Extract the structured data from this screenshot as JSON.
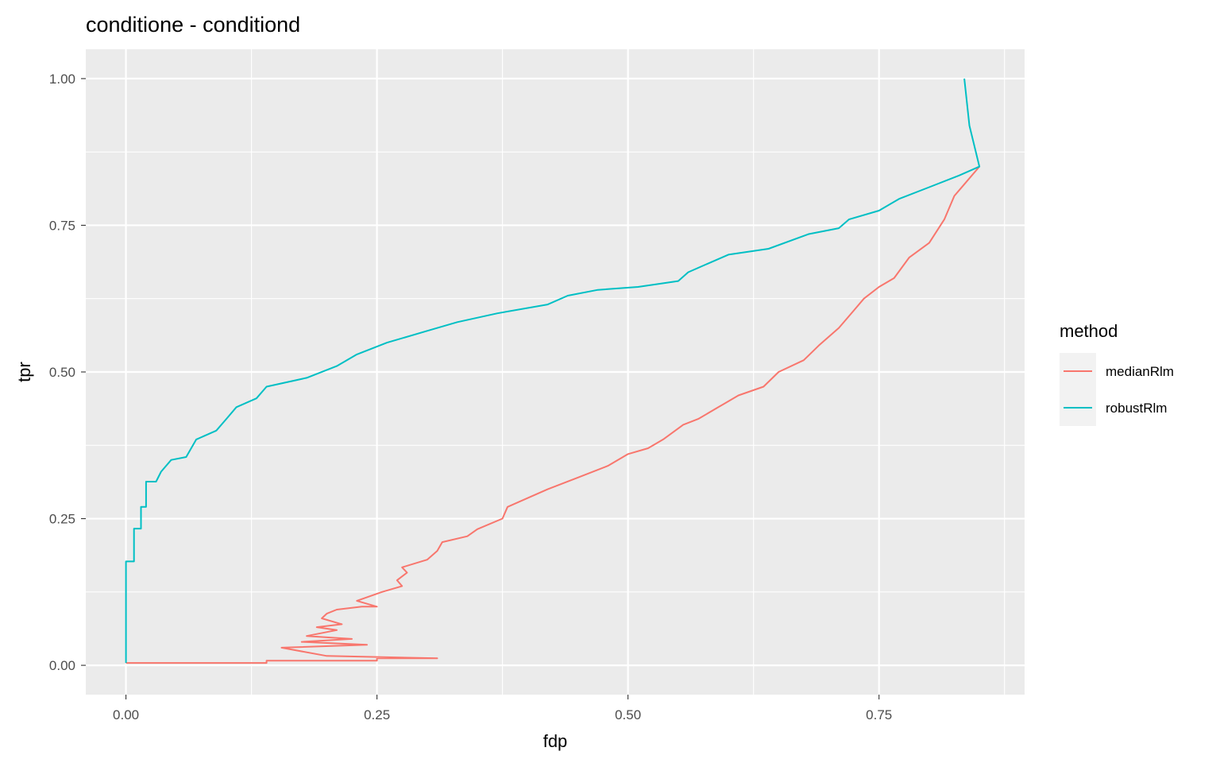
{
  "chart_data": {
    "type": "line",
    "title": "conditione - conditiond",
    "xlabel": "fdp",
    "ylabel": "tpr",
    "xlim": [
      -0.04,
      0.895
    ],
    "ylim": [
      -0.05,
      1.05
    ],
    "x_ticks": [
      0.0,
      0.25,
      0.5,
      0.75
    ],
    "x_tick_labels": [
      "0.00",
      "0.25",
      "0.50",
      "0.75"
    ],
    "y_ticks": [
      0.0,
      0.25,
      0.5,
      0.75,
      1.0
    ],
    "y_tick_labels": [
      "0.00",
      "0.25",
      "0.50",
      "0.75",
      "1.00"
    ],
    "grid": true,
    "legend": {
      "title": "method",
      "position": "right"
    },
    "series": [
      {
        "name": "medianRlm",
        "color": "#F8766D",
        "points": [
          [
            0.0,
            0.004
          ],
          [
            0.14,
            0.004
          ],
          [
            0.14,
            0.008
          ],
          [
            0.25,
            0.008
          ],
          [
            0.25,
            0.012
          ],
          [
            0.31,
            0.012
          ],
          [
            0.2,
            0.016
          ],
          [
            0.155,
            0.03
          ],
          [
            0.24,
            0.035
          ],
          [
            0.175,
            0.04
          ],
          [
            0.225,
            0.045
          ],
          [
            0.18,
            0.05
          ],
          [
            0.21,
            0.06
          ],
          [
            0.19,
            0.065
          ],
          [
            0.215,
            0.07
          ],
          [
            0.195,
            0.08
          ],
          [
            0.2,
            0.088
          ],
          [
            0.21,
            0.095
          ],
          [
            0.235,
            0.1
          ],
          [
            0.25,
            0.1
          ],
          [
            0.23,
            0.11
          ],
          [
            0.255,
            0.125
          ],
          [
            0.275,
            0.135
          ],
          [
            0.27,
            0.145
          ],
          [
            0.28,
            0.158
          ],
          [
            0.275,
            0.167
          ],
          [
            0.3,
            0.18
          ],
          [
            0.31,
            0.195
          ],
          [
            0.315,
            0.21
          ],
          [
            0.34,
            0.22
          ],
          [
            0.35,
            0.232
          ],
          [
            0.375,
            0.25
          ],
          [
            0.38,
            0.27
          ],
          [
            0.4,
            0.285
          ],
          [
            0.42,
            0.3
          ],
          [
            0.45,
            0.32
          ],
          [
            0.48,
            0.34
          ],
          [
            0.5,
            0.36
          ],
          [
            0.52,
            0.37
          ],
          [
            0.535,
            0.385
          ],
          [
            0.555,
            0.41
          ],
          [
            0.57,
            0.42
          ],
          [
            0.59,
            0.44
          ],
          [
            0.61,
            0.46
          ],
          [
            0.635,
            0.475
          ],
          [
            0.65,
            0.5
          ],
          [
            0.675,
            0.52
          ],
          [
            0.69,
            0.545
          ],
          [
            0.71,
            0.575
          ],
          [
            0.725,
            0.605
          ],
          [
            0.735,
            0.625
          ],
          [
            0.75,
            0.645
          ],
          [
            0.765,
            0.66
          ],
          [
            0.78,
            0.695
          ],
          [
            0.8,
            0.72
          ],
          [
            0.815,
            0.76
          ],
          [
            0.825,
            0.8
          ],
          [
            0.835,
            0.82
          ],
          [
            0.85,
            0.85
          ]
        ]
      },
      {
        "name": "robustRlm",
        "color": "#00BFC4",
        "points": [
          [
            0.0,
            0.004
          ],
          [
            0.0,
            0.177
          ],
          [
            0.008,
            0.177
          ],
          [
            0.008,
            0.233
          ],
          [
            0.015,
            0.233
          ],
          [
            0.015,
            0.27
          ],
          [
            0.02,
            0.27
          ],
          [
            0.02,
            0.313
          ],
          [
            0.03,
            0.313
          ],
          [
            0.035,
            0.33
          ],
          [
            0.045,
            0.35
          ],
          [
            0.06,
            0.355
          ],
          [
            0.07,
            0.385
          ],
          [
            0.09,
            0.4
          ],
          [
            0.1,
            0.42
          ],
          [
            0.11,
            0.44
          ],
          [
            0.13,
            0.455
          ],
          [
            0.14,
            0.475
          ],
          [
            0.18,
            0.49
          ],
          [
            0.21,
            0.51
          ],
          [
            0.23,
            0.53
          ],
          [
            0.26,
            0.55
          ],
          [
            0.3,
            0.57
          ],
          [
            0.33,
            0.585
          ],
          [
            0.37,
            0.6
          ],
          [
            0.42,
            0.615
          ],
          [
            0.44,
            0.63
          ],
          [
            0.47,
            0.64
          ],
          [
            0.51,
            0.645
          ],
          [
            0.55,
            0.655
          ],
          [
            0.56,
            0.67
          ],
          [
            0.58,
            0.685
          ],
          [
            0.6,
            0.7
          ],
          [
            0.64,
            0.71
          ],
          [
            0.68,
            0.735
          ],
          [
            0.71,
            0.745
          ],
          [
            0.72,
            0.76
          ],
          [
            0.75,
            0.775
          ],
          [
            0.77,
            0.795
          ],
          [
            0.8,
            0.815
          ],
          [
            0.83,
            0.835
          ],
          [
            0.85,
            0.85
          ],
          [
            0.84,
            0.92
          ],
          [
            0.835,
            1.0
          ]
        ]
      }
    ]
  }
}
